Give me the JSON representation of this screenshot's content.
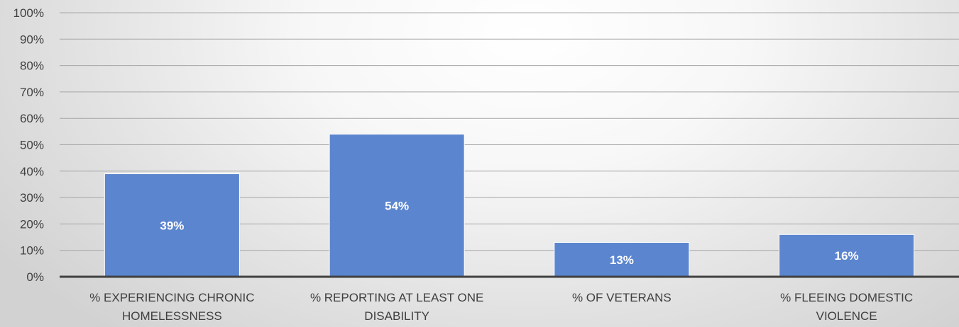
{
  "chart_data": {
    "type": "bar",
    "title": "",
    "xlabel": "",
    "ylabel": "",
    "categories": [
      [
        "% EXPERIENCING CHRONIC",
        "HOMELESSNESS"
      ],
      [
        "% REPORTING AT LEAST ONE",
        "DISABILITY"
      ],
      [
        "% OF VETERANS"
      ],
      [
        "% FLEEING DOMESTIC",
        "VIOLENCE"
      ]
    ],
    "values": [
      39,
      54,
      13,
      16
    ],
    "data_labels": [
      "39%",
      "54%",
      "13%",
      "16%"
    ],
    "ylim": [
      0,
      100
    ],
    "yticks": [
      0,
      10,
      20,
      30,
      40,
      50,
      60,
      70,
      80,
      90,
      100
    ],
    "ytick_labels": [
      "0%",
      "10%",
      "20%",
      "30%",
      "40%",
      "50%",
      "60%",
      "70%",
      "80%",
      "90%",
      "100%"
    ],
    "grid": true,
    "legend": "none",
    "colors": {
      "bar": "#5b85cf",
      "bar_edge": "#ffffff",
      "grid": "#a6a6a6",
      "axis": "#404040",
      "text": "#404040",
      "data_label": "#ffffff"
    }
  }
}
